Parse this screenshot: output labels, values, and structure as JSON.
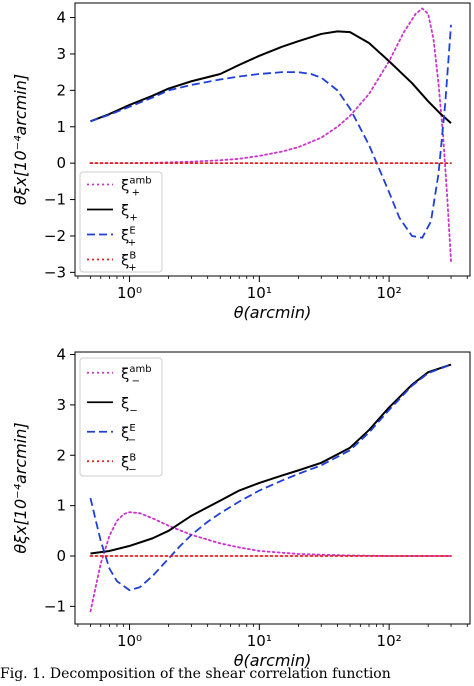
{
  "chart_data": [
    {
      "type": "line",
      "xscale": "log",
      "xlim": [
        0.38,
        420
      ],
      "ylim": [
        -3.1,
        4.4
      ],
      "xlabel": "θ(arcmin)",
      "ylabel": "θξx[10⁻⁴arcmin]",
      "xticks": [
        {
          "value": 1,
          "label": "10⁰"
        },
        {
          "value": 10,
          "label": "10¹"
        },
        {
          "value": 100,
          "label": "10²"
        }
      ],
      "yticks": [
        -3,
        -2,
        -1,
        0,
        1,
        2,
        3,
        4
      ],
      "grid": false,
      "legend_position": "lower-left",
      "series": [
        {
          "name": "ξ+amb",
          "color": "#cc33cc",
          "style": "dotted",
          "x": [
            0.5,
            0.7,
            1,
            1.5,
            2,
            3,
            5,
            7,
            10,
            15,
            20,
            30,
            40,
            50,
            70,
            100,
            130,
            160,
            180,
            200,
            220,
            240,
            260,
            280,
            300
          ],
          "y": [
            0.0,
            0.0,
            0.0,
            0.01,
            0.02,
            0.04,
            0.08,
            0.12,
            0.2,
            0.32,
            0.44,
            0.7,
            1.0,
            1.3,
            1.9,
            2.8,
            3.6,
            4.1,
            4.25,
            4.1,
            3.4,
            2.2,
            0.8,
            -0.9,
            -2.7
          ]
        },
        {
          "name": "ξ+",
          "color": "#000000",
          "style": "solid",
          "x": [
            0.5,
            0.7,
            1,
            1.5,
            2,
            3,
            5,
            7,
            10,
            15,
            20,
            30,
            40,
            50,
            70,
            100,
            150,
            200,
            250,
            300
          ],
          "y": [
            1.15,
            1.35,
            1.6,
            1.85,
            2.05,
            2.25,
            2.45,
            2.7,
            2.95,
            3.2,
            3.35,
            3.55,
            3.62,
            3.6,
            3.3,
            2.8,
            2.2,
            1.7,
            1.35,
            1.1
          ]
        },
        {
          "name": "ξ+E",
          "color": "#1f3fd8",
          "style": "dashed",
          "x": [
            0.5,
            0.7,
            1,
            1.5,
            2,
            3,
            5,
            7,
            10,
            15,
            20,
            25,
            30,
            40,
            50,
            70,
            100,
            120,
            150,
            180,
            210,
            240,
            270,
            300
          ],
          "y": [
            1.15,
            1.33,
            1.55,
            1.8,
            2.0,
            2.15,
            2.3,
            2.38,
            2.45,
            2.5,
            2.5,
            2.45,
            2.35,
            2.0,
            1.5,
            0.5,
            -0.8,
            -1.5,
            -2.0,
            -2.05,
            -1.6,
            -0.3,
            1.6,
            3.8
          ]
        },
        {
          "name": "ξ+B",
          "color": "#dd2222",
          "style": "dotted",
          "x": [
            0.5,
            1,
            10,
            100,
            300
          ],
          "y": [
            0,
            0,
            0,
            0,
            0
          ]
        }
      ]
    },
    {
      "type": "line",
      "xscale": "log",
      "xlim": [
        0.38,
        420
      ],
      "ylim": [
        -1.35,
        4.05
      ],
      "xlabel": "θ(arcmin)",
      "ylabel": "θξx[10⁻⁴arcmin]",
      "xticks": [
        {
          "value": 1,
          "label": "10⁰"
        },
        {
          "value": 10,
          "label": "10¹"
        },
        {
          "value": 100,
          "label": "10²"
        }
      ],
      "yticks": [
        -1,
        0,
        1,
        2,
        3,
        4
      ],
      "grid": false,
      "legend_position": "upper-left",
      "series": [
        {
          "name": "ξ−amb",
          "color": "#cc33cc",
          "style": "dotted",
          "x": [
            0.5,
            0.55,
            0.6,
            0.7,
            0.8,
            0.9,
            1.0,
            1.2,
            1.5,
            2,
            3,
            5,
            7,
            10,
            20,
            50,
            100,
            300
          ],
          "y": [
            -1.1,
            -0.6,
            -0.15,
            0.4,
            0.7,
            0.83,
            0.87,
            0.85,
            0.75,
            0.6,
            0.42,
            0.25,
            0.17,
            0.1,
            0.04,
            0.01,
            0.0,
            0.0
          ]
        },
        {
          "name": "ξ−",
          "color": "#000000",
          "style": "solid",
          "x": [
            0.5,
            0.7,
            1,
            1.5,
            2,
            3,
            5,
            7,
            10,
            15,
            20,
            30,
            50,
            70,
            100,
            150,
            200,
            300
          ],
          "y": [
            0.05,
            0.1,
            0.2,
            0.35,
            0.5,
            0.8,
            1.1,
            1.3,
            1.45,
            1.6,
            1.7,
            1.85,
            2.15,
            2.5,
            2.95,
            3.4,
            3.65,
            3.8
          ]
        },
        {
          "name": "ξ−E",
          "color": "#1f3fd8",
          "style": "dashed",
          "x": [
            0.5,
            0.55,
            0.6,
            0.7,
            0.8,
            1.0,
            1.2,
            1.5,
            2,
            2.5,
            3,
            4,
            5,
            7,
            10,
            15,
            20,
            30,
            50,
            70,
            100,
            150,
            200,
            300
          ],
          "y": [
            1.15,
            0.7,
            0.3,
            -0.25,
            -0.5,
            -0.68,
            -0.62,
            -0.4,
            -0.05,
            0.22,
            0.42,
            0.68,
            0.85,
            1.08,
            1.3,
            1.5,
            1.63,
            1.8,
            2.1,
            2.45,
            2.9,
            3.38,
            3.63,
            3.8
          ]
        },
        {
          "name": "ξ−B",
          "color": "#dd2222",
          "style": "dotted",
          "x": [
            0.5,
            1,
            10,
            100,
            300
          ],
          "y": [
            0,
            0,
            0,
            0,
            0
          ]
        }
      ]
    }
  ],
  "legends": [
    [
      {
        "base": "ξ",
        "sup": "amb",
        "sub": "+",
        "color": "#cc33cc",
        "style": "dotted"
      },
      {
        "base": "ξ",
        "sup": "",
        "sub": "+",
        "color": "#000000",
        "style": "solid"
      },
      {
        "base": "ξ",
        "sup": "E",
        "sub": "+",
        "color": "#1f3fd8",
        "style": "dashed"
      },
      {
        "base": "ξ",
        "sup": "B",
        "sub": "+",
        "color": "#dd2222",
        "style": "dotted"
      }
    ],
    [
      {
        "base": "ξ",
        "sup": "amb",
        "sub": "−",
        "color": "#cc33cc",
        "style": "dotted"
      },
      {
        "base": "ξ",
        "sup": "",
        "sub": "−",
        "color": "#000000",
        "style": "solid"
      },
      {
        "base": "ξ",
        "sup": "E",
        "sub": "−",
        "color": "#1f3fd8",
        "style": "dashed"
      },
      {
        "base": "ξ",
        "sup": "B",
        "sub": "−",
        "color": "#dd2222",
        "style": "dotted"
      }
    ]
  ],
  "caption": "Fig. 1. Decomposition of the shear correlation function"
}
